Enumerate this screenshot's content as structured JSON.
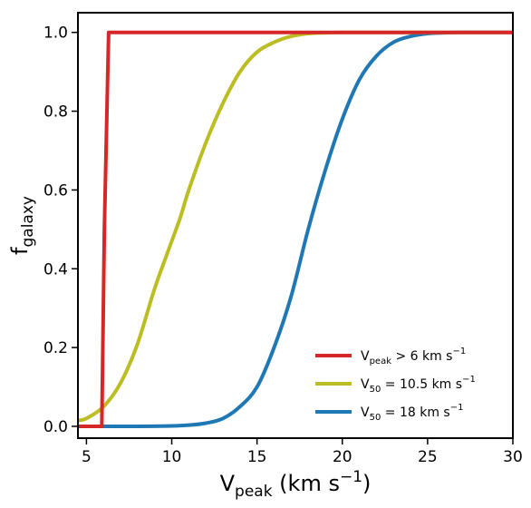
{
  "chart_data": {
    "type": "line",
    "xlabel": {
      "main": "V",
      "sub": "peak",
      "units_prefix": " (km s",
      "units_sup": "−1",
      "units_suffix": ")"
    },
    "ylabel": {
      "main": "f",
      "sub": "galaxy"
    },
    "xlim": [
      4.5,
      30
    ],
    "ylim": [
      -0.03,
      1.05
    ],
    "x_ticks": [
      5,
      10,
      15,
      20,
      25,
      30
    ],
    "y_ticks": [
      0.0,
      0.2,
      0.4,
      0.6,
      0.8,
      1.0
    ],
    "x_tick_labels": [
      "5",
      "10",
      "15",
      "20",
      "25",
      "30"
    ],
    "y_tick_labels": [
      "0.0",
      "0.2",
      "0.4",
      "0.6",
      "0.8",
      "1.0"
    ],
    "grid": false,
    "legend_position": "lower-right",
    "series": [
      {
        "name": "V_peak > 6 km s^-1",
        "legend": {
          "main": "V",
          "sub": "peak",
          "rest": " >  6 km s",
          "sup": "−1"
        },
        "color": "#d62728",
        "x": [
          4.5,
          5.9,
          5.9,
          6.05,
          6.3,
          30
        ],
        "y": [
          0.0,
          0.0,
          0.0,
          0.5,
          1.0,
          1.0
        ]
      },
      {
        "name": "V_50 = 10.5 km s^-1",
        "legend": {
          "main": "V",
          "sub": "50",
          "rest": " = 10.5 km s",
          "sup": "−1"
        },
        "color": "#bcbd22",
        "x": [
          4.5,
          5,
          6,
          7,
          8,
          9,
          10,
          10.5,
          11,
          12,
          13,
          14,
          15,
          16,
          17,
          18,
          19,
          20,
          22,
          25,
          30
        ],
        "y": [
          0.015,
          0.02,
          0.05,
          0.11,
          0.21,
          0.35,
          0.47,
          0.53,
          0.6,
          0.72,
          0.82,
          0.9,
          0.95,
          0.975,
          0.99,
          0.997,
          0.999,
          1.0,
          1.0,
          1.0,
          1.0
        ]
      },
      {
        "name": "V_50 = 18 km s^-1",
        "legend": {
          "main": "V",
          "sub": "50",
          "rest": " = 18 km s",
          "sup": "−1"
        },
        "color": "#1f77b4",
        "x": [
          4.5,
          8,
          10,
          11,
          12,
          13,
          14,
          15,
          16,
          17,
          18,
          19,
          20,
          21,
          22,
          23,
          24,
          25,
          26,
          27,
          28,
          30
        ],
        "y": [
          0.0,
          0.0,
          0.001,
          0.003,
          0.008,
          0.02,
          0.05,
          0.1,
          0.2,
          0.33,
          0.5,
          0.65,
          0.78,
          0.88,
          0.94,
          0.975,
          0.99,
          0.997,
          0.999,
          1.0,
          1.0,
          1.0
        ]
      }
    ]
  }
}
